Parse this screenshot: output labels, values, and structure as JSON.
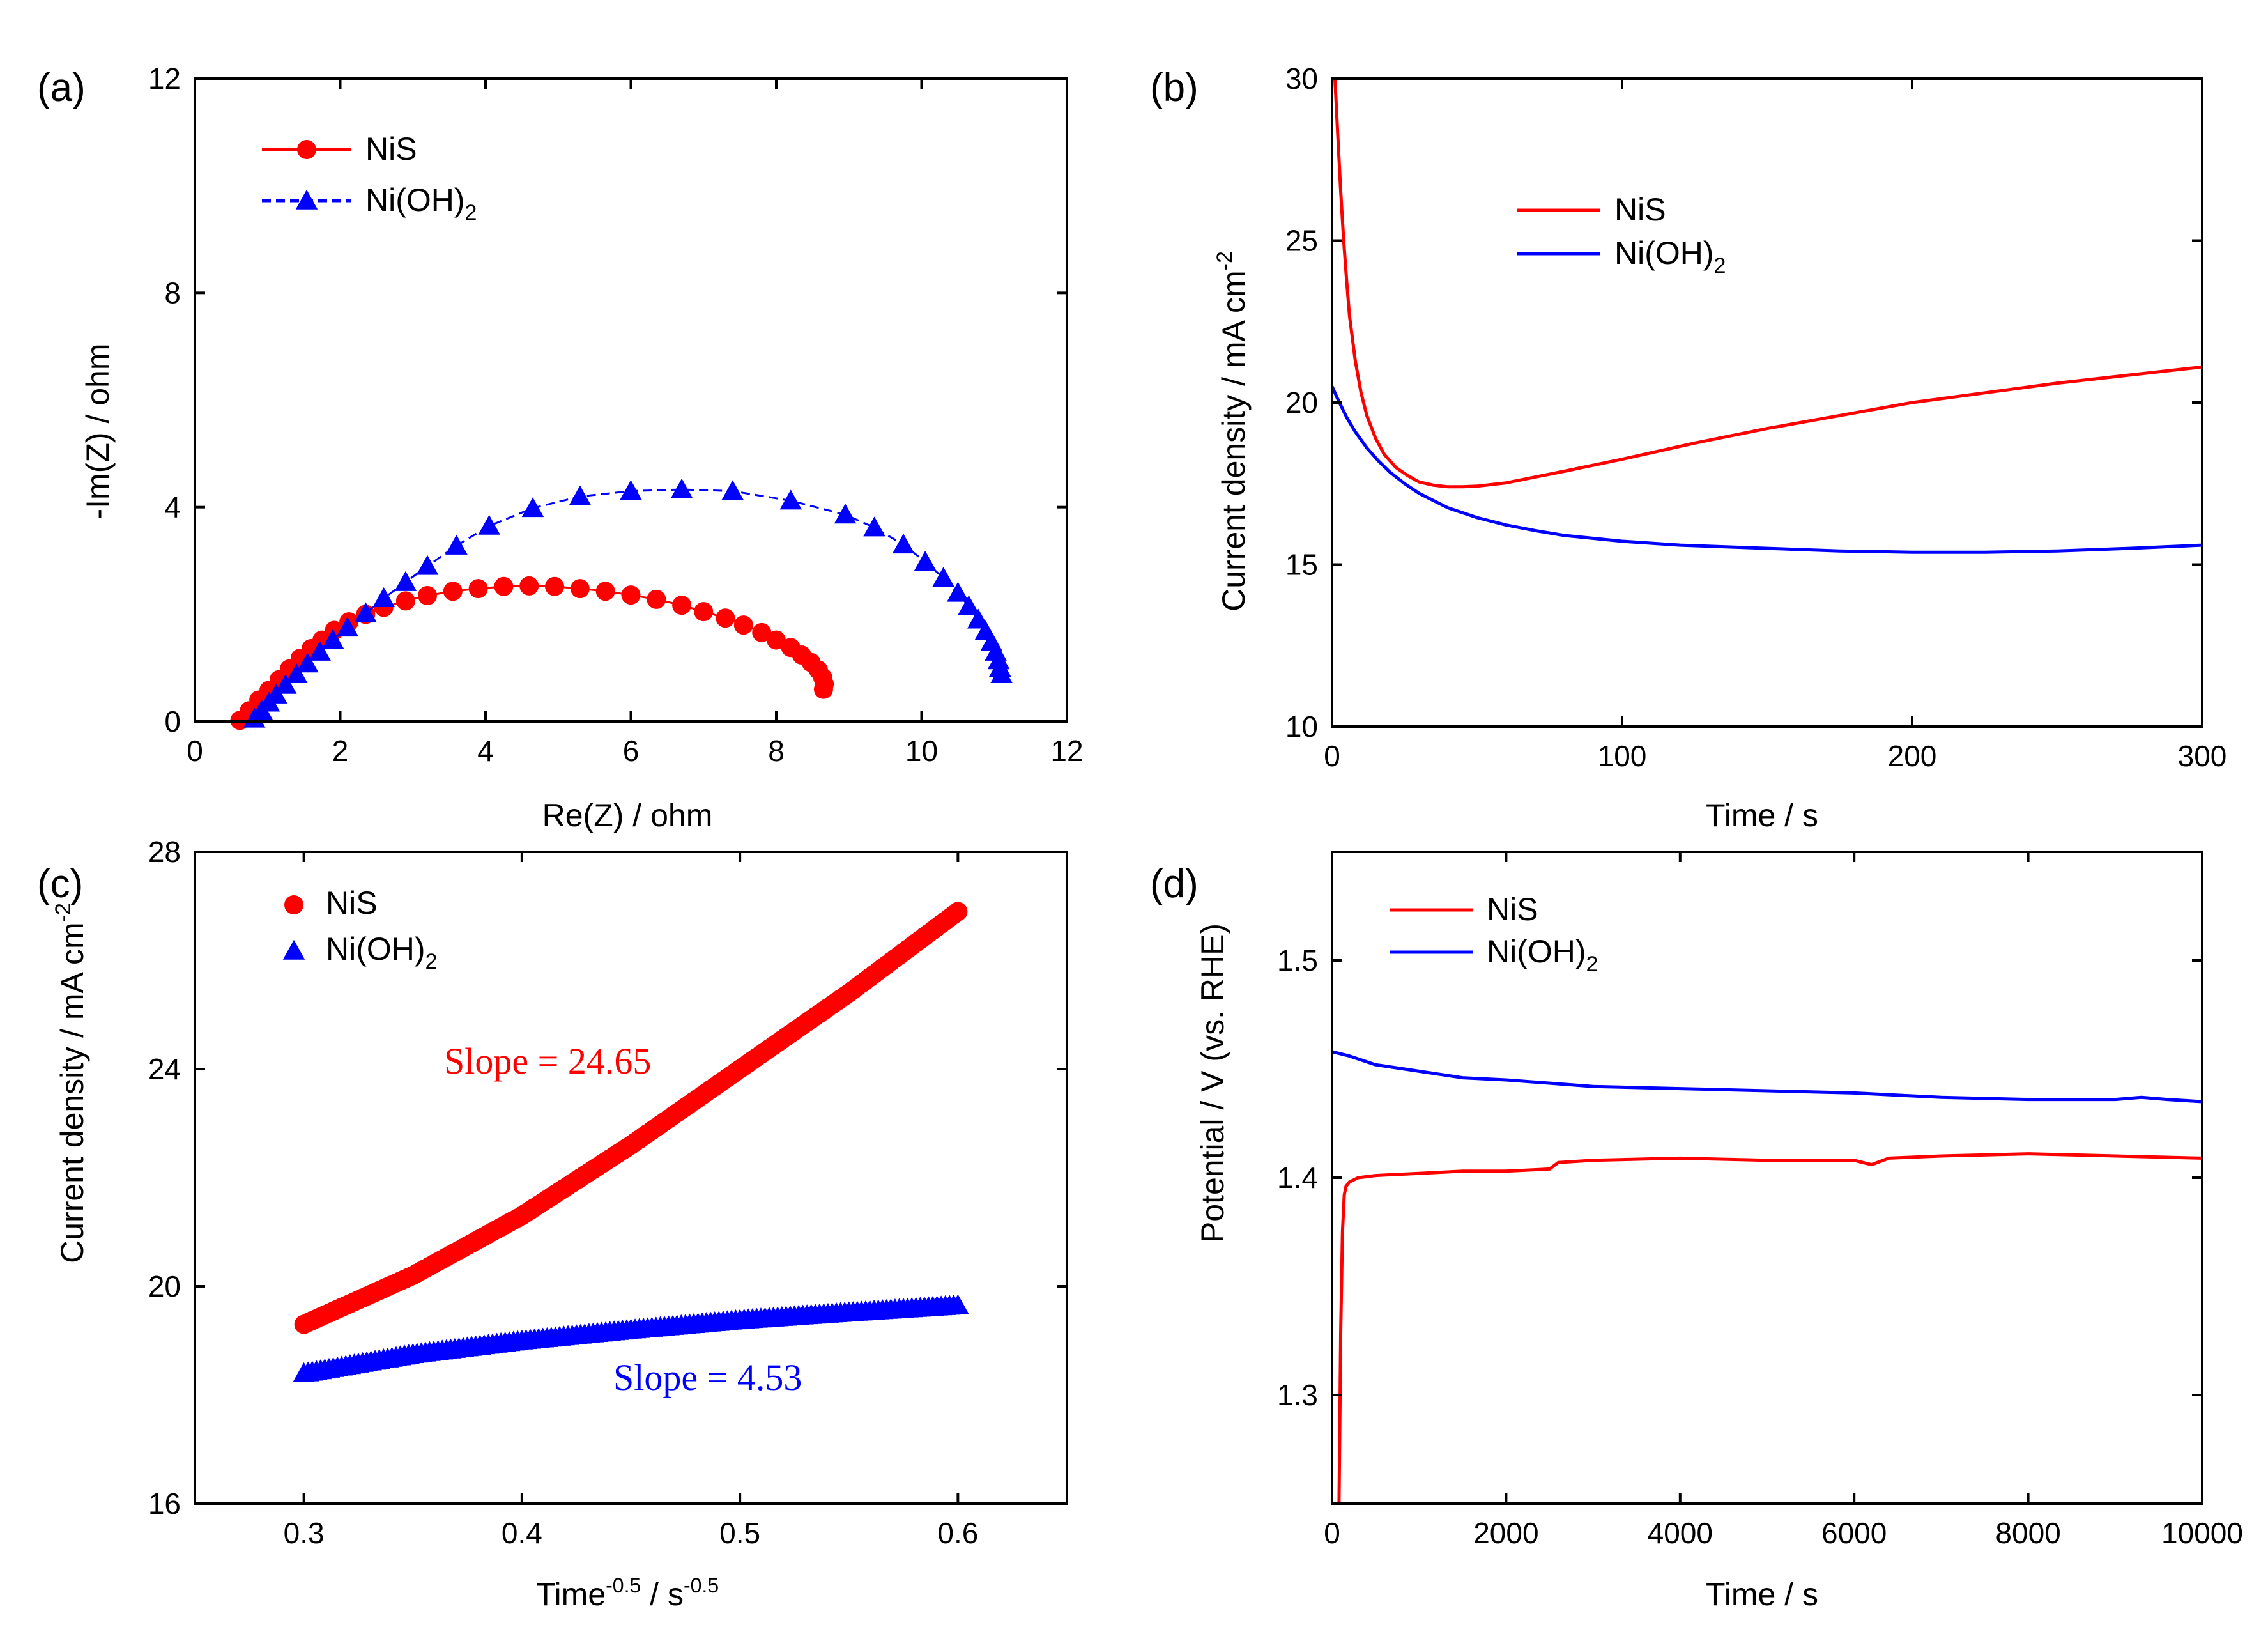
{
  "colors": {
    "red": "#ff0000",
    "blue": "#0000ff"
  },
  "chart_data": [
    {
      "id": "a",
      "panel_label": "(a)",
      "type": "scatter",
      "xlabel": "Re(Z) / ohm",
      "ylabel": "-Im(Z) / ohm",
      "xlim": [
        0,
        12
      ],
      "ylim": [
        0,
        12
      ],
      "xticks": [
        0,
        2,
        4,
        6,
        8,
        10,
        12
      ],
      "yticks": [
        0,
        4,
        8,
        12
      ],
      "legend": {
        "position": "top-left"
      },
      "series": [
        {
          "name": "NiS",
          "sub": "",
          "color": "#ff0000",
          "marker": "circle",
          "line": true,
          "x": [
            0.62,
            0.75,
            0.88,
            1.02,
            1.16,
            1.3,
            1.45,
            1.6,
            1.75,
            1.92,
            2.12,
            2.35,
            2.6,
            2.9,
            3.2,
            3.55,
            3.9,
            4.25,
            4.6,
            4.95,
            5.3,
            5.65,
            6.0,
            6.35,
            6.7,
            7.0,
            7.3,
            7.55,
            7.8,
            8.0,
            8.2,
            8.35,
            8.48,
            8.58,
            8.64,
            8.66,
            8.65
          ],
          "y": [
            0.02,
            0.2,
            0.4,
            0.58,
            0.78,
            0.98,
            1.18,
            1.36,
            1.52,
            1.7,
            1.86,
            2.0,
            2.13,
            2.25,
            2.35,
            2.43,
            2.48,
            2.52,
            2.53,
            2.52,
            2.48,
            2.43,
            2.36,
            2.28,
            2.17,
            2.05,
            1.93,
            1.8,
            1.66,
            1.52,
            1.38,
            1.24,
            1.1,
            0.96,
            0.82,
            0.7,
            0.6
          ]
        },
        {
          "name": "Ni(OH)",
          "sub": "2",
          "color": "#0000ff",
          "marker": "triangle",
          "line": true,
          "x": [
            0.82,
            0.92,
            1.02,
            1.12,
            1.25,
            1.4,
            1.55,
            1.72,
            1.9,
            2.1,
            2.35,
            2.6,
            2.9,
            3.2,
            3.6,
            4.05,
            4.65,
            5.3,
            6.0,
            6.7,
            7.4,
            8.2,
            8.95,
            9.35,
            9.75,
            10.05,
            10.3,
            10.5,
            10.65,
            10.78,
            10.88,
            10.96,
            11.02,
            11.06,
            11.08,
            11.1
          ],
          "y": [
            0.05,
            0.2,
            0.35,
            0.5,
            0.68,
            0.88,
            1.08,
            1.3,
            1.52,
            1.75,
            2.02,
            2.3,
            2.6,
            2.9,
            3.28,
            3.65,
            3.98,
            4.2,
            4.3,
            4.33,
            4.3,
            4.12,
            3.86,
            3.62,
            3.3,
            2.98,
            2.68,
            2.4,
            2.15,
            1.9,
            1.68,
            1.48,
            1.3,
            1.14,
            1.0,
            0.88
          ]
        }
      ]
    },
    {
      "id": "b",
      "panel_label": "(b)",
      "type": "line",
      "xlabel": "Time / s",
      "ylabel": "Current density / mA cm",
      "ylabel_sup": "-2",
      "xlim": [
        0,
        300
      ],
      "ylim": [
        10,
        30
      ],
      "xticks": [
        0,
        100,
        200,
        300
      ],
      "yticks": [
        10,
        15,
        20,
        25,
        30
      ],
      "legend": {
        "position": "upper-center"
      },
      "series": [
        {
          "name": "NiS",
          "sub": "",
          "color": "#ff0000",
          "x": [
            1,
            2,
            3,
            4,
            5,
            6,
            8,
            10,
            12,
            15,
            18,
            22,
            26,
            30,
            35,
            40,
            45,
            50,
            60,
            70,
            80,
            100,
            125,
            150,
            175,
            200,
            225,
            250,
            275,
            300
          ],
          "y": [
            30,
            28.2,
            26.5,
            25.0,
            23.8,
            22.7,
            21.3,
            20.3,
            19.6,
            18.9,
            18.4,
            18.0,
            17.75,
            17.55,
            17.45,
            17.4,
            17.4,
            17.42,
            17.52,
            17.7,
            17.88,
            18.25,
            18.75,
            19.2,
            19.6,
            20.0,
            20.3,
            20.6,
            20.85,
            21.1
          ]
        },
        {
          "name": "Ni(OH)",
          "sub": "2",
          "color": "#0000ff",
          "x": [
            0,
            2,
            5,
            8,
            12,
            16,
            20,
            25,
            30,
            40,
            50,
            60,
            70,
            80,
            100,
            120,
            150,
            175,
            200,
            225,
            250,
            275,
            300
          ],
          "y": [
            20.5,
            20.1,
            19.55,
            19.1,
            18.6,
            18.2,
            17.85,
            17.5,
            17.2,
            16.75,
            16.45,
            16.22,
            16.05,
            15.9,
            15.72,
            15.6,
            15.5,
            15.42,
            15.38,
            15.38,
            15.42,
            15.5,
            15.6
          ]
        }
      ]
    },
    {
      "id": "c",
      "panel_label": "(c)",
      "type": "scatter",
      "xlabel": "Time",
      "xlabel_sup1": "-0.5",
      "xlabel_mid": " / s",
      "xlabel_sup2": "-0.5",
      "ylabel": "Current density / mA cm",
      "ylabel_sup": "-2",
      "xlim": [
        0.25,
        0.65
      ],
      "ylim": [
        16,
        28
      ],
      "xticks": [
        0.3,
        0.4,
        0.5,
        0.6
      ],
      "yticks": [
        16,
        20,
        24,
        28
      ],
      "legend": {
        "position": "top-left"
      },
      "series": [
        {
          "name": "NiS",
          "sub": "",
          "color": "#ff0000",
          "marker": "circle",
          "x": [
            0.3,
            0.35,
            0.4,
            0.45,
            0.5,
            0.55,
            0.6
          ],
          "y": [
            19.3,
            20.2,
            21.3,
            22.6,
            24.0,
            25.4,
            26.9
          ]
        },
        {
          "name": "Ni(OH)",
          "sub": "2",
          "color": "#0000ff",
          "marker": "triangle",
          "x": [
            0.3,
            0.35,
            0.4,
            0.45,
            0.5,
            0.55,
            0.6
          ],
          "y": [
            18.4,
            18.75,
            19.0,
            19.2,
            19.38,
            19.52,
            19.65
          ]
        }
      ],
      "annotations": [
        {
          "text": "Slope = 24.65",
          "color": "#ff0000"
        },
        {
          "text": "Slope = 4.53",
          "color": "#0000ff"
        }
      ]
    },
    {
      "id": "d",
      "panel_label": "(d)",
      "type": "line",
      "xlabel": "Time / s",
      "ylabel": "Potential / V (vs. RHE)",
      "xlim": [
        0,
        10000
      ],
      "ylim": [
        1.25,
        1.55
      ],
      "xticks": [
        0,
        2000,
        4000,
        6000,
        8000,
        10000
      ],
      "yticks": [
        1.3,
        1.4,
        1.5
      ],
      "legend": {
        "position": "top-left"
      },
      "series": [
        {
          "name": "NiS",
          "sub": "",
          "color": "#ff0000",
          "x": [
            80,
            100,
            120,
            140,
            160,
            200,
            300,
            500,
            1000,
            1500,
            2000,
            2500,
            2600,
            3000,
            4000,
            5000,
            6000,
            6200,
            6400,
            7000,
            8000,
            9000,
            10000
          ],
          "y": [
            1.25,
            1.33,
            1.375,
            1.392,
            1.396,
            1.398,
            1.4,
            1.401,
            1.402,
            1.403,
            1.403,
            1.404,
            1.407,
            1.408,
            1.409,
            1.408,
            1.408,
            1.406,
            1.409,
            1.41,
            1.411,
            1.41,
            1.409
          ]
        },
        {
          "name": "Ni(OH)",
          "sub": "2",
          "color": "#0000ff",
          "x": [
            0,
            200,
            500,
            1000,
            1500,
            2000,
            3000,
            4000,
            5000,
            6000,
            7000,
            8000,
            9000,
            9300,
            9600,
            10000
          ],
          "y": [
            1.458,
            1.456,
            1.452,
            1.449,
            1.446,
            1.445,
            1.442,
            1.441,
            1.44,
            1.439,
            1.437,
            1.436,
            1.436,
            1.437,
            1.436,
            1.435
          ]
        }
      ]
    }
  ]
}
